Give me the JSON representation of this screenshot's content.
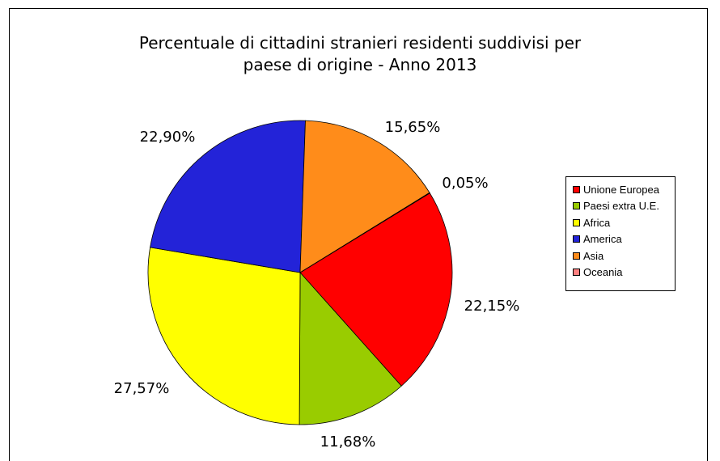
{
  "chart_data": {
    "type": "pie",
    "title": "Percentuale di cittadini stranieri residenti suddivisi per paese di origine - Anno 2013",
    "title_lines": [
      "Percentuale di cittadini stranieri residenti suddivisi per",
      "paese di origine - Anno 2013"
    ],
    "legend_position": "right",
    "slices": [
      {
        "name": "Unione Europea",
        "value": 22.15,
        "label": "22,15%",
        "color": "#ff0000"
      },
      {
        "name": "Paesi extra U.E.",
        "value": 11.68,
        "label": "11,68%",
        "color": "#99cc00"
      },
      {
        "name": "Africa",
        "value": 27.57,
        "label": "27,57%",
        "color": "#ffff00"
      },
      {
        "name": "America",
        "value": 22.9,
        "label": "22,90%",
        "color": "#2323d8"
      },
      {
        "name": "Asia",
        "value": 15.65,
        "label": "15,65%",
        "color": "#ff8c1a"
      },
      {
        "name": "Oceania",
        "value": 0.05,
        "label": "0,05%",
        "color": "#ff8080"
      }
    ]
  }
}
